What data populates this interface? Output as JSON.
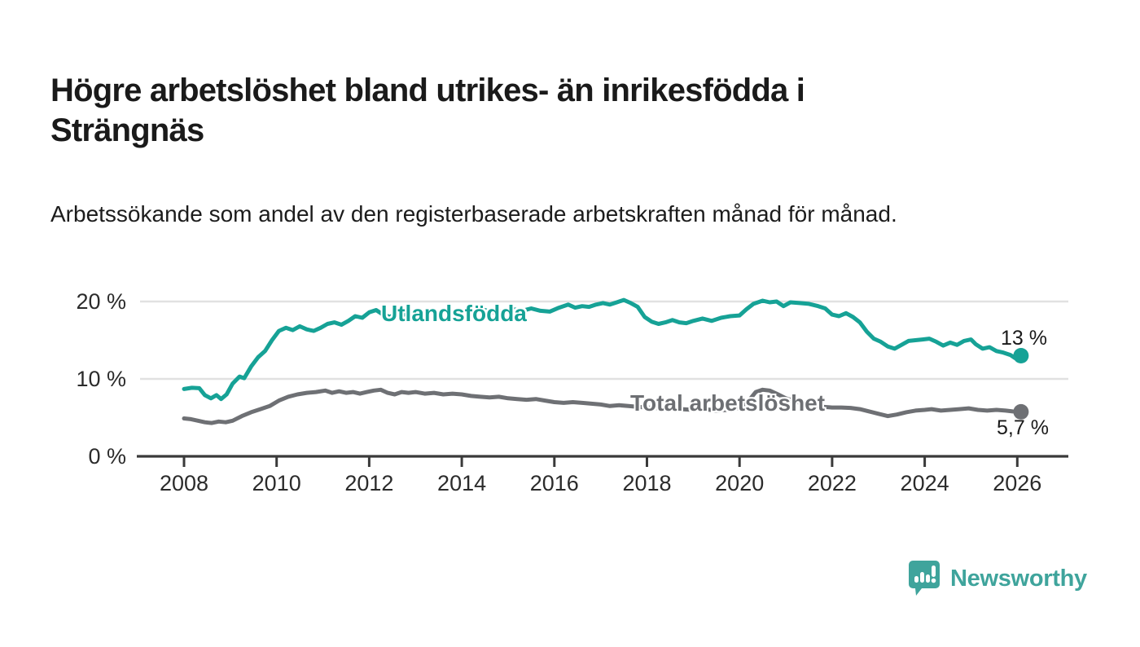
{
  "title": "Högre arbetslöshet bland utrikes- än inrikesfödda i Strängnäs",
  "subtitle": "Arbetssökande som andel av den registerbaserade arbetskraften månad för månad.",
  "chart_data": {
    "type": "line",
    "title": "Högre arbetslöshet bland utrikes- än inrikesfödda i Strängnäs",
    "subtitle": "Arbetssökande som andel av den registerbaserade arbetskraften månad för månad.",
    "unit": "%",
    "grid": "horizontal",
    "x_range": [
      2007.85,
      2027.1
    ],
    "ylim": [
      0,
      21.5
    ],
    "x_axis": {
      "ticks": [
        {
          "value": 2008,
          "label": "2008"
        },
        {
          "value": 2010,
          "label": "2010"
        },
        {
          "value": 2012,
          "label": "2012"
        },
        {
          "value": 2014,
          "label": "2014"
        },
        {
          "value": 2016,
          "label": "2016"
        },
        {
          "value": 2018,
          "label": "2018"
        },
        {
          "value": 2020,
          "label": "2020"
        },
        {
          "value": 2022,
          "label": "2022"
        },
        {
          "value": 2024,
          "label": "2024"
        },
        {
          "value": 2026,
          "label": "2026"
        }
      ]
    },
    "y_axis": {
      "ticks": [
        {
          "value": 0,
          "label": "0 %"
        },
        {
          "value": 10,
          "label": "10 %"
        },
        {
          "value": 20,
          "label": "20 %"
        }
      ]
    },
    "series": [
      {
        "name": "Utlandsfödda",
        "color": "#16a296",
        "end_label": "13 %",
        "end_value": 13,
        "points": [
          [
            2008.0,
            8.7
          ],
          [
            2008.17,
            8.85
          ],
          [
            2008.33,
            8.8
          ],
          [
            2008.45,
            7.9
          ],
          [
            2008.58,
            7.5
          ],
          [
            2008.7,
            7.9
          ],
          [
            2008.8,
            7.4
          ],
          [
            2008.92,
            8.0
          ],
          [
            2009.05,
            9.4
          ],
          [
            2009.2,
            10.3
          ],
          [
            2009.3,
            10.1
          ],
          [
            2009.45,
            11.6
          ],
          [
            2009.6,
            12.8
          ],
          [
            2009.75,
            13.6
          ],
          [
            2009.9,
            15.0
          ],
          [
            2010.05,
            16.2
          ],
          [
            2010.2,
            16.6
          ],
          [
            2010.35,
            16.3
          ],
          [
            2010.5,
            16.8
          ],
          [
            2010.65,
            16.4
          ],
          [
            2010.8,
            16.2
          ],
          [
            2010.95,
            16.6
          ],
          [
            2011.1,
            17.1
          ],
          [
            2011.25,
            17.3
          ],
          [
            2011.4,
            17.0
          ],
          [
            2011.55,
            17.5
          ],
          [
            2011.7,
            18.1
          ],
          [
            2011.85,
            17.9
          ],
          [
            2012.0,
            18.6
          ],
          [
            2012.15,
            18.9
          ],
          [
            2012.3,
            18.3
          ],
          [
            2012.45,
            18.0
          ],
          [
            2012.6,
            18.5
          ],
          [
            2012.75,
            18.3
          ],
          [
            2012.9,
            18.6
          ],
          [
            2013.1,
            18.4
          ],
          [
            2013.3,
            18.7
          ],
          [
            2013.5,
            18.5
          ],
          [
            2013.7,
            18.8
          ],
          [
            2013.9,
            18.6
          ],
          [
            2014.1,
            18.9
          ],
          [
            2014.3,
            18.7
          ],
          [
            2014.5,
            18.9
          ],
          [
            2014.7,
            18.6
          ],
          [
            2014.9,
            18.8
          ],
          [
            2015.1,
            19.0
          ],
          [
            2015.3,
            18.8
          ],
          [
            2015.5,
            19.1
          ],
          [
            2015.7,
            18.8
          ],
          [
            2015.9,
            18.7
          ],
          [
            2016.1,
            19.2
          ],
          [
            2016.3,
            19.6
          ],
          [
            2016.45,
            19.2
          ],
          [
            2016.6,
            19.4
          ],
          [
            2016.75,
            19.3
          ],
          [
            2016.9,
            19.6
          ],
          [
            2017.05,
            19.8
          ],
          [
            2017.2,
            19.6
          ],
          [
            2017.35,
            19.9
          ],
          [
            2017.5,
            20.2
          ],
          [
            2017.65,
            19.8
          ],
          [
            2017.8,
            19.3
          ],
          [
            2017.95,
            18.0
          ],
          [
            2018.1,
            17.4
          ],
          [
            2018.25,
            17.1
          ],
          [
            2018.4,
            17.3
          ],
          [
            2018.55,
            17.6
          ],
          [
            2018.7,
            17.3
          ],
          [
            2018.85,
            17.2
          ],
          [
            2019.0,
            17.5
          ],
          [
            2019.2,
            17.8
          ],
          [
            2019.4,
            17.5
          ],
          [
            2019.6,
            17.9
          ],
          [
            2019.8,
            18.1
          ],
          [
            2020.0,
            18.2
          ],
          [
            2020.15,
            19.0
          ],
          [
            2020.3,
            19.7
          ],
          [
            2020.5,
            20.1
          ],
          [
            2020.65,
            19.9
          ],
          [
            2020.8,
            20.0
          ],
          [
            2020.95,
            19.4
          ],
          [
            2021.1,
            19.9
          ],
          [
            2021.3,
            19.8
          ],
          [
            2021.5,
            19.7
          ],
          [
            2021.7,
            19.4
          ],
          [
            2021.85,
            19.1
          ],
          [
            2022.0,
            18.3
          ],
          [
            2022.15,
            18.1
          ],
          [
            2022.3,
            18.5
          ],
          [
            2022.45,
            18.0
          ],
          [
            2022.6,
            17.3
          ],
          [
            2022.75,
            16.1
          ],
          [
            2022.9,
            15.2
          ],
          [
            2023.05,
            14.8
          ],
          [
            2023.2,
            14.2
          ],
          [
            2023.35,
            13.9
          ],
          [
            2023.5,
            14.4
          ],
          [
            2023.65,
            14.9
          ],
          [
            2023.8,
            15.0
          ],
          [
            2023.95,
            15.1
          ],
          [
            2024.1,
            15.2
          ],
          [
            2024.25,
            14.8
          ],
          [
            2024.4,
            14.3
          ],
          [
            2024.55,
            14.7
          ],
          [
            2024.7,
            14.4
          ],
          [
            2024.85,
            14.9
          ],
          [
            2025.0,
            15.1
          ],
          [
            2025.1,
            14.5
          ],
          [
            2025.25,
            13.9
          ],
          [
            2025.4,
            14.1
          ],
          [
            2025.55,
            13.6
          ],
          [
            2025.7,
            13.4
          ],
          [
            2025.85,
            13.1
          ],
          [
            2025.95,
            12.7
          ],
          [
            2026.08,
            13.0
          ]
        ]
      },
      {
        "name": "Total arbetslöshet",
        "color": "#6e7074",
        "end_label": "5,7 %",
        "end_value": 5.7,
        "points": [
          [
            2008.0,
            4.9
          ],
          [
            2008.15,
            4.8
          ],
          [
            2008.3,
            4.6
          ],
          [
            2008.45,
            4.4
          ],
          [
            2008.6,
            4.3
          ],
          [
            2008.75,
            4.5
          ],
          [
            2008.9,
            4.4
          ],
          [
            2009.05,
            4.6
          ],
          [
            2009.25,
            5.2
          ],
          [
            2009.45,
            5.7
          ],
          [
            2009.65,
            6.1
          ],
          [
            2009.85,
            6.5
          ],
          [
            2010.05,
            7.2
          ],
          [
            2010.25,
            7.7
          ],
          [
            2010.45,
            8.0
          ],
          [
            2010.65,
            8.2
          ],
          [
            2010.85,
            8.3
          ],
          [
            2011.05,
            8.5
          ],
          [
            2011.2,
            8.2
          ],
          [
            2011.35,
            8.4
          ],
          [
            2011.5,
            8.2
          ],
          [
            2011.65,
            8.3
          ],
          [
            2011.8,
            8.1
          ],
          [
            2011.95,
            8.3
          ],
          [
            2012.1,
            8.5
          ],
          [
            2012.25,
            8.6
          ],
          [
            2012.4,
            8.2
          ],
          [
            2012.55,
            8.0
          ],
          [
            2012.7,
            8.3
          ],
          [
            2012.85,
            8.2
          ],
          [
            2013.0,
            8.3
          ],
          [
            2013.2,
            8.1
          ],
          [
            2013.4,
            8.2
          ],
          [
            2013.6,
            8.0
          ],
          [
            2013.8,
            8.1
          ],
          [
            2014.0,
            8.0
          ],
          [
            2014.2,
            7.8
          ],
          [
            2014.4,
            7.7
          ],
          [
            2014.6,
            7.6
          ],
          [
            2014.8,
            7.7
          ],
          [
            2015.0,
            7.5
          ],
          [
            2015.2,
            7.4
          ],
          [
            2015.4,
            7.3
          ],
          [
            2015.6,
            7.4
          ],
          [
            2015.8,
            7.2
          ],
          [
            2016.0,
            7.0
          ],
          [
            2016.2,
            6.9
          ],
          [
            2016.4,
            7.0
          ],
          [
            2016.6,
            6.9
          ],
          [
            2016.8,
            6.8
          ],
          [
            2017.0,
            6.7
          ],
          [
            2017.2,
            6.5
          ],
          [
            2017.4,
            6.6
          ],
          [
            2017.6,
            6.5
          ],
          [
            2017.8,
            6.4
          ],
          [
            2018.0,
            6.3
          ],
          [
            2018.25,
            6.2
          ],
          [
            2018.5,
            6.3
          ],
          [
            2018.75,
            6.1
          ],
          [
            2019.0,
            6.0
          ],
          [
            2019.25,
            6.1
          ],
          [
            2019.5,
            5.9
          ],
          [
            2019.75,
            6.0
          ],
          [
            2020.0,
            6.2
          ],
          [
            2020.2,
            7.2
          ],
          [
            2020.35,
            8.3
          ],
          [
            2020.5,
            8.6
          ],
          [
            2020.65,
            8.5
          ],
          [
            2020.8,
            8.1
          ],
          [
            2021.0,
            7.5
          ],
          [
            2021.2,
            7.1
          ],
          [
            2021.4,
            6.8
          ],
          [
            2021.6,
            6.6
          ],
          [
            2021.8,
            6.4
          ],
          [
            2022.0,
            6.3
          ],
          [
            2022.2,
            6.3
          ],
          [
            2022.4,
            6.25
          ],
          [
            2022.6,
            6.1
          ],
          [
            2022.8,
            5.8
          ],
          [
            2023.0,
            5.5
          ],
          [
            2023.2,
            5.2
          ],
          [
            2023.4,
            5.4
          ],
          [
            2023.6,
            5.7
          ],
          [
            2023.8,
            5.9
          ],
          [
            2024.0,
            6.0
          ],
          [
            2024.15,
            6.1
          ],
          [
            2024.35,
            5.9
          ],
          [
            2024.55,
            6.0
          ],
          [
            2024.75,
            6.1
          ],
          [
            2024.95,
            6.2
          ],
          [
            2025.15,
            6.0
          ],
          [
            2025.35,
            5.9
          ],
          [
            2025.55,
            6.0
          ],
          [
            2025.75,
            5.9
          ],
          [
            2025.9,
            5.8
          ],
          [
            2026.08,
            5.75
          ]
        ]
      }
    ],
    "colors": {
      "grid": "#e1e1e1",
      "axis": "#3a3a3a",
      "tick_text": "#2b2b2b"
    }
  },
  "branding": {
    "logo_text": "Newsworthy",
    "color": "#3fa49c"
  }
}
